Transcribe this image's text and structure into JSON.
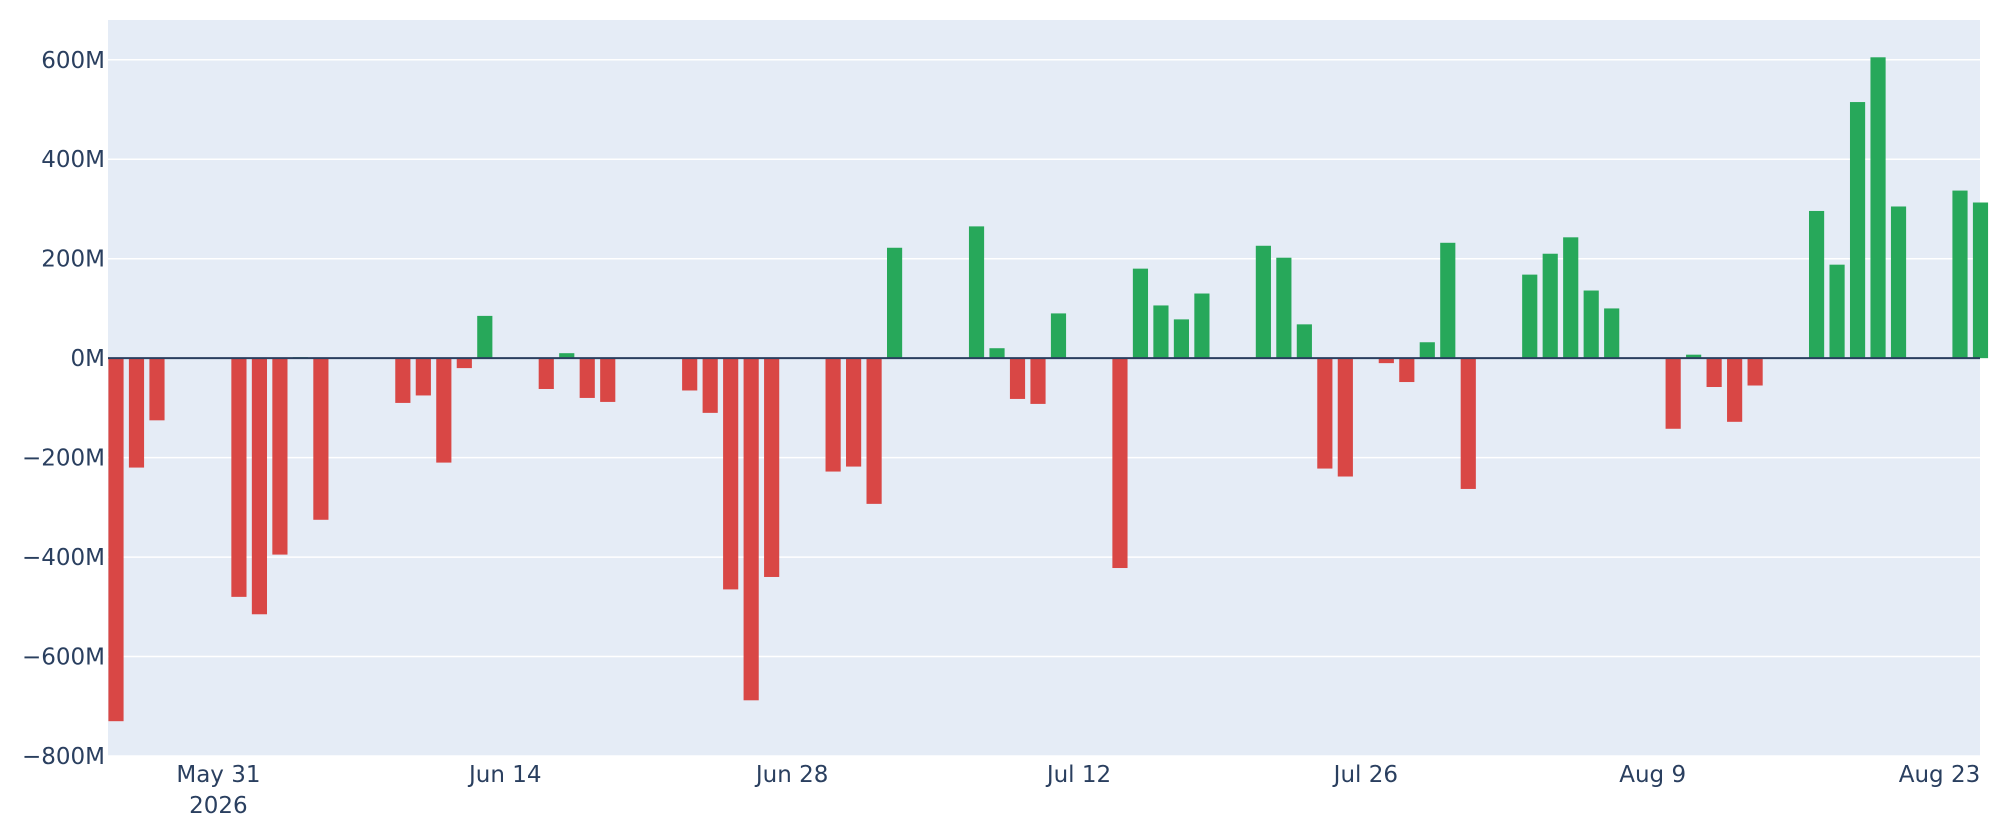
{
  "chart_data": {
    "type": "bar",
    "title": "",
    "xlabel": "",
    "ylabel": "",
    "ylim": [
      -800,
      680
    ],
    "y_unit_suffix": "M",
    "y_ticks": [
      {
        "value": 600,
        "label": "600M"
      },
      {
        "value": 400,
        "label": "400M"
      },
      {
        "value": 200,
        "label": "200M"
      },
      {
        "value": 0,
        "label": "0M"
      },
      {
        "value": -200,
        "label": "−200M"
      },
      {
        "value": -400,
        "label": "−400M"
      },
      {
        "value": -600,
        "label": "−600M"
      },
      {
        "value": -800,
        "label": "−800M"
      }
    ],
    "x_ticks": [
      {
        "date": "2026-05-31",
        "label": "May 31",
        "sublabel": "2026"
      },
      {
        "date": "2026-06-14",
        "label": "Jun 14",
        "sublabel": ""
      },
      {
        "date": "2026-06-28",
        "label": "Jun 28",
        "sublabel": ""
      },
      {
        "date": "2026-07-12",
        "label": "Jul 12",
        "sublabel": ""
      },
      {
        "date": "2026-07-26",
        "label": "Jul 26",
        "sublabel": ""
      },
      {
        "date": "2026-08-09",
        "label": "Aug 9",
        "sublabel": ""
      },
      {
        "date": "2026-08-23",
        "label": "Aug 23",
        "sublabel": ""
      }
    ],
    "x_range": [
      "2026-05-26",
      "2026-08-24"
    ],
    "colors": {
      "positive": "#27a85a",
      "negative": "#d94745",
      "plot_background": "#e5ecf6",
      "grid": "#ffffff",
      "zero_line": "#2a3f5f",
      "text": "#2a3f5f"
    },
    "grid": true,
    "bars": [
      {
        "x": "2026-05-26",
        "y": -730
      },
      {
        "x": "2026-05-27",
        "y": -220
      },
      {
        "x": "2026-05-28",
        "y": -125
      },
      {
        "x": "2026-06-01",
        "y": -480
      },
      {
        "x": "2026-06-02",
        "y": -515
      },
      {
        "x": "2026-06-03",
        "y": -395
      },
      {
        "x": "2026-06-04",
        "y": 2
      },
      {
        "x": "2026-06-05",
        "y": -325
      },
      {
        "x": "2026-06-09",
        "y": -90
      },
      {
        "x": "2026-06-10",
        "y": -75
      },
      {
        "x": "2026-06-11",
        "y": -210
      },
      {
        "x": "2026-06-12",
        "y": -20
      },
      {
        "x": "2026-06-13",
        "y": 85
      },
      {
        "x": "2026-06-16",
        "y": -62
      },
      {
        "x": "2026-06-17",
        "y": 10
      },
      {
        "x": "2026-06-18",
        "y": -80
      },
      {
        "x": "2026-06-19",
        "y": -88
      },
      {
        "x": "2026-06-23",
        "y": -65
      },
      {
        "x": "2026-06-24",
        "y": -110
      },
      {
        "x": "2026-06-25",
        "y": -465
      },
      {
        "x": "2026-06-26",
        "y": -688
      },
      {
        "x": "2026-06-27",
        "y": -440
      },
      {
        "x": "2026-06-30",
        "y": -228
      },
      {
        "x": "2026-07-01",
        "y": -218
      },
      {
        "x": "2026-07-02",
        "y": -293
      },
      {
        "x": "2026-07-03",
        "y": 222
      },
      {
        "x": "2026-07-07",
        "y": 265
      },
      {
        "x": "2026-07-08",
        "y": 20
      },
      {
        "x": "2026-07-09",
        "y": -82
      },
      {
        "x": "2026-07-10",
        "y": -92
      },
      {
        "x": "2026-07-11",
        "y": 90
      },
      {
        "x": "2026-07-14",
        "y": -422
      },
      {
        "x": "2026-07-15",
        "y": 180
      },
      {
        "x": "2026-07-16",
        "y": 106
      },
      {
        "x": "2026-07-17",
        "y": 78
      },
      {
        "x": "2026-07-18",
        "y": 130
      },
      {
        "x": "2026-07-21",
        "y": 226
      },
      {
        "x": "2026-07-22",
        "y": 202
      },
      {
        "x": "2026-07-23",
        "y": 68
      },
      {
        "x": "2026-07-24",
        "y": -222
      },
      {
        "x": "2026-07-25",
        "y": -238
      },
      {
        "x": "2026-07-27",
        "y": -10
      },
      {
        "x": "2026-07-28",
        "y": -48
      },
      {
        "x": "2026-07-29",
        "y": 32
      },
      {
        "x": "2026-07-30",
        "y": 232
      },
      {
        "x": "2026-07-31",
        "y": -263
      },
      {
        "x": "2026-08-03",
        "y": 168
      },
      {
        "x": "2026-08-04",
        "y": 210
      },
      {
        "x": "2026-08-05",
        "y": 243
      },
      {
        "x": "2026-08-06",
        "y": 136
      },
      {
        "x": "2026-08-07",
        "y": 100
      },
      {
        "x": "2026-08-10",
        "y": -142
      },
      {
        "x": "2026-08-11",
        "y": 7
      },
      {
        "x": "2026-08-12",
        "y": -58
      },
      {
        "x": "2026-08-13",
        "y": -128
      },
      {
        "x": "2026-08-14",
        "y": -55
      },
      {
        "x": "2026-08-17",
        "y": 296
      },
      {
        "x": "2026-08-18",
        "y": 188
      },
      {
        "x": "2026-08-19",
        "y": 515
      },
      {
        "x": "2026-08-20",
        "y": 605
      },
      {
        "x": "2026-08-21",
        "y": 305
      },
      {
        "x": "2026-08-24",
        "y": 337
      },
      {
        "x": "2026-08-25",
        "y": 313
      }
    ]
  }
}
